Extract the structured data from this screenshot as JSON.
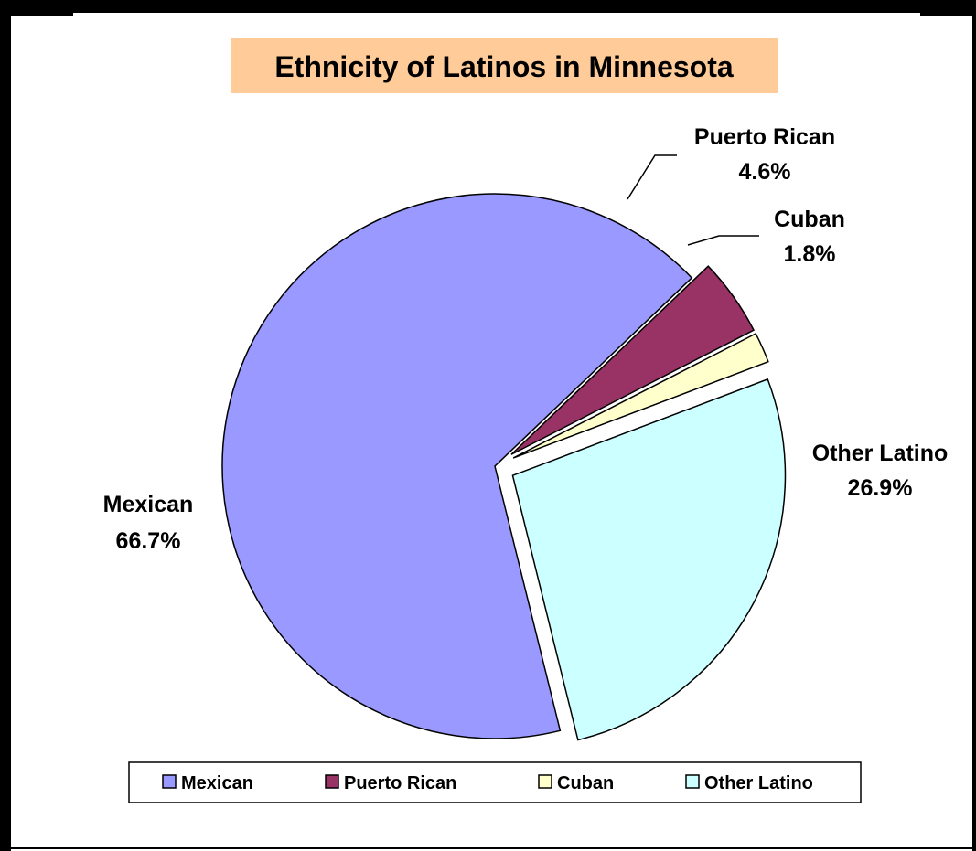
{
  "chart_data": {
    "type": "pie",
    "title": "Ethnicity of Latinos in Minnesota",
    "title_background": "#FFCC99",
    "legend_position": "bottom",
    "slices": [
      {
        "label": "Mexican",
        "value": 66.7,
        "display": "66.7%",
        "color": "#9999FF"
      },
      {
        "label": "Puerto Rican",
        "value": 4.6,
        "display": "4.6%",
        "color": "#993366"
      },
      {
        "label": "Cuban",
        "value": 1.8,
        "display": "1.8%",
        "color": "#FFFFCC"
      },
      {
        "label": "Other Latino",
        "value": 26.9,
        "display": "26.9%",
        "color": "#CCFFFF"
      }
    ]
  }
}
